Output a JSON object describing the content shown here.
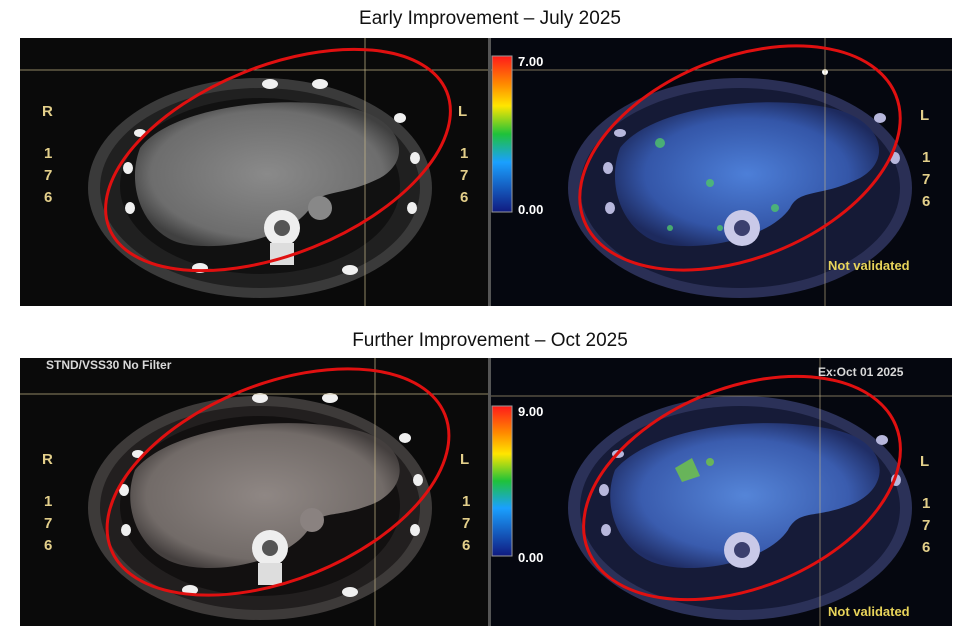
{
  "panels": [
    {
      "title": "Early Improvement – July 2025",
      "ct_side_left": "R",
      "ct_side_right": "L",
      "slice_digits": [
        "1",
        "7",
        "6"
      ],
      "scale_max": "7.00",
      "scale_min": "0.00",
      "pet_side_right": "L",
      "stamp": "Not validated"
    },
    {
      "title": "Further Improvement – Oct 2025",
      "ct_header": "STND/VSS30 No Filter",
      "ct_side_left": "R",
      "ct_side_right": "L",
      "slice_digits": [
        "1",
        "7",
        "6"
      ],
      "scale_max": "9.00",
      "scale_min": "0.00",
      "pet_date": "Ex:Oct 01 2025",
      "pet_side_right": "L",
      "stamp": "Not validated"
    }
  ],
  "colors": {
    "annotation_ellipse": "#e01010",
    "overlay_text": "#e3cf8a",
    "pet_tint": "#3b63c8"
  }
}
